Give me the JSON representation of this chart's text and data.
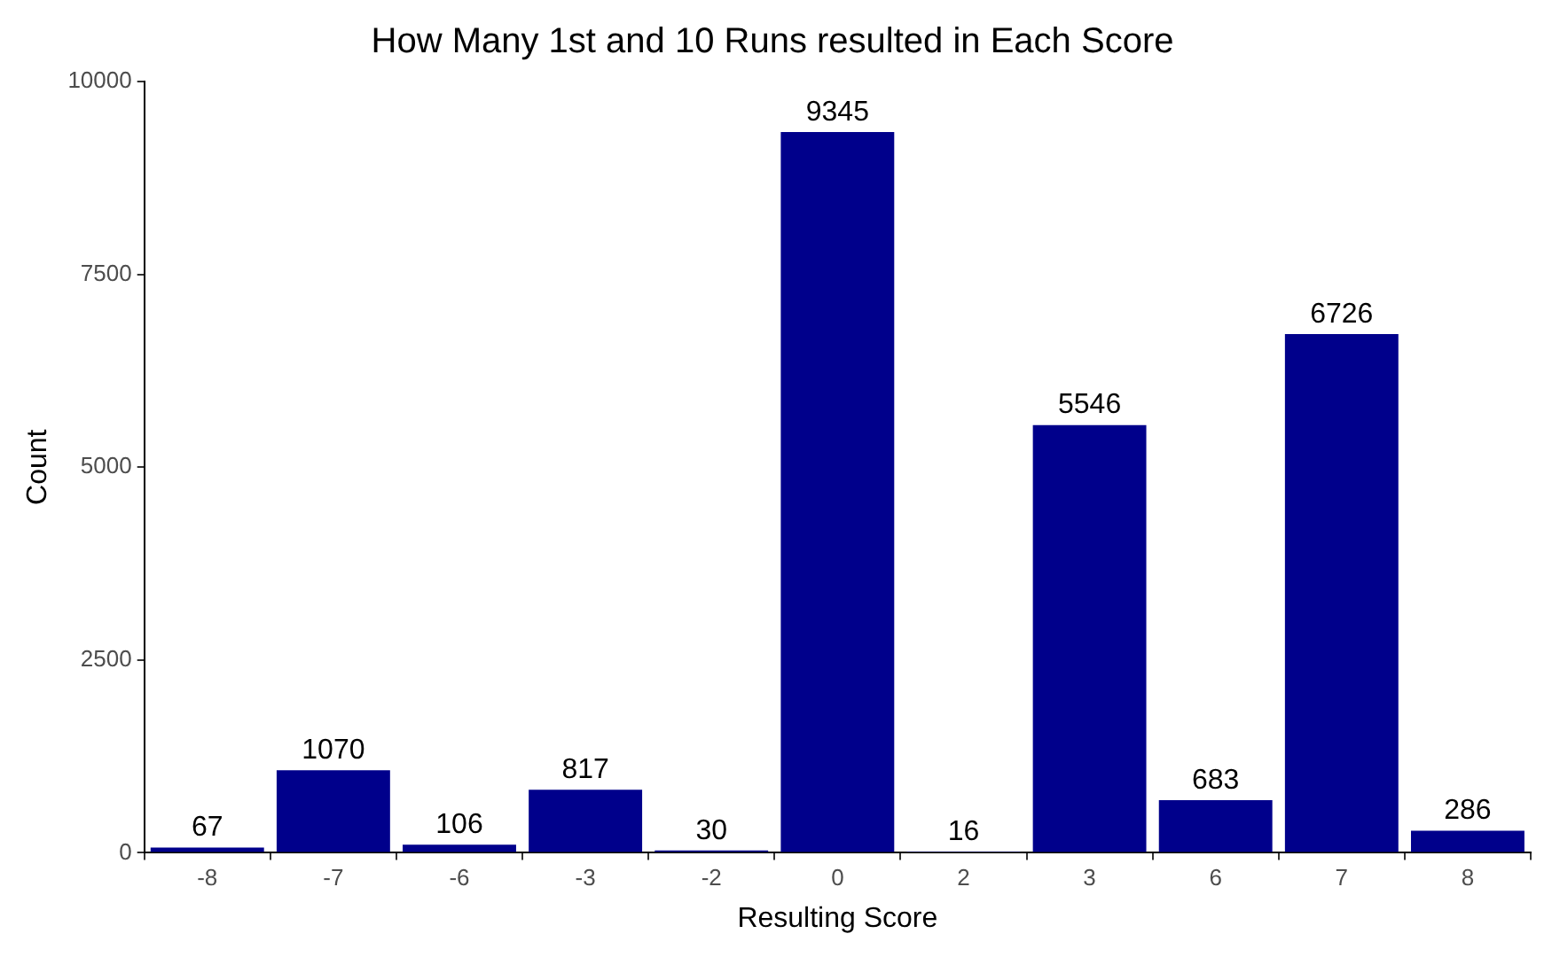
{
  "chart_data": {
    "type": "bar",
    "title": "How Many 1st and 10 Runs resulted in Each Score",
    "xlabel": "Resulting Score",
    "ylabel": "Count",
    "categories": [
      "-8",
      "-7",
      "-6",
      "-3",
      "-2",
      "0",
      "2",
      "3",
      "6",
      "7",
      "8"
    ],
    "values": [
      67,
      1070,
      106,
      817,
      30,
      9345,
      16,
      5546,
      683,
      6726,
      286
    ],
    "color": "#00008b",
    "ylim": [
      0,
      10000
    ],
    "yticks": [
      0,
      2500,
      5000,
      7500,
      10000
    ],
    "grid": false,
    "legend": false,
    "data_labels": true
  }
}
